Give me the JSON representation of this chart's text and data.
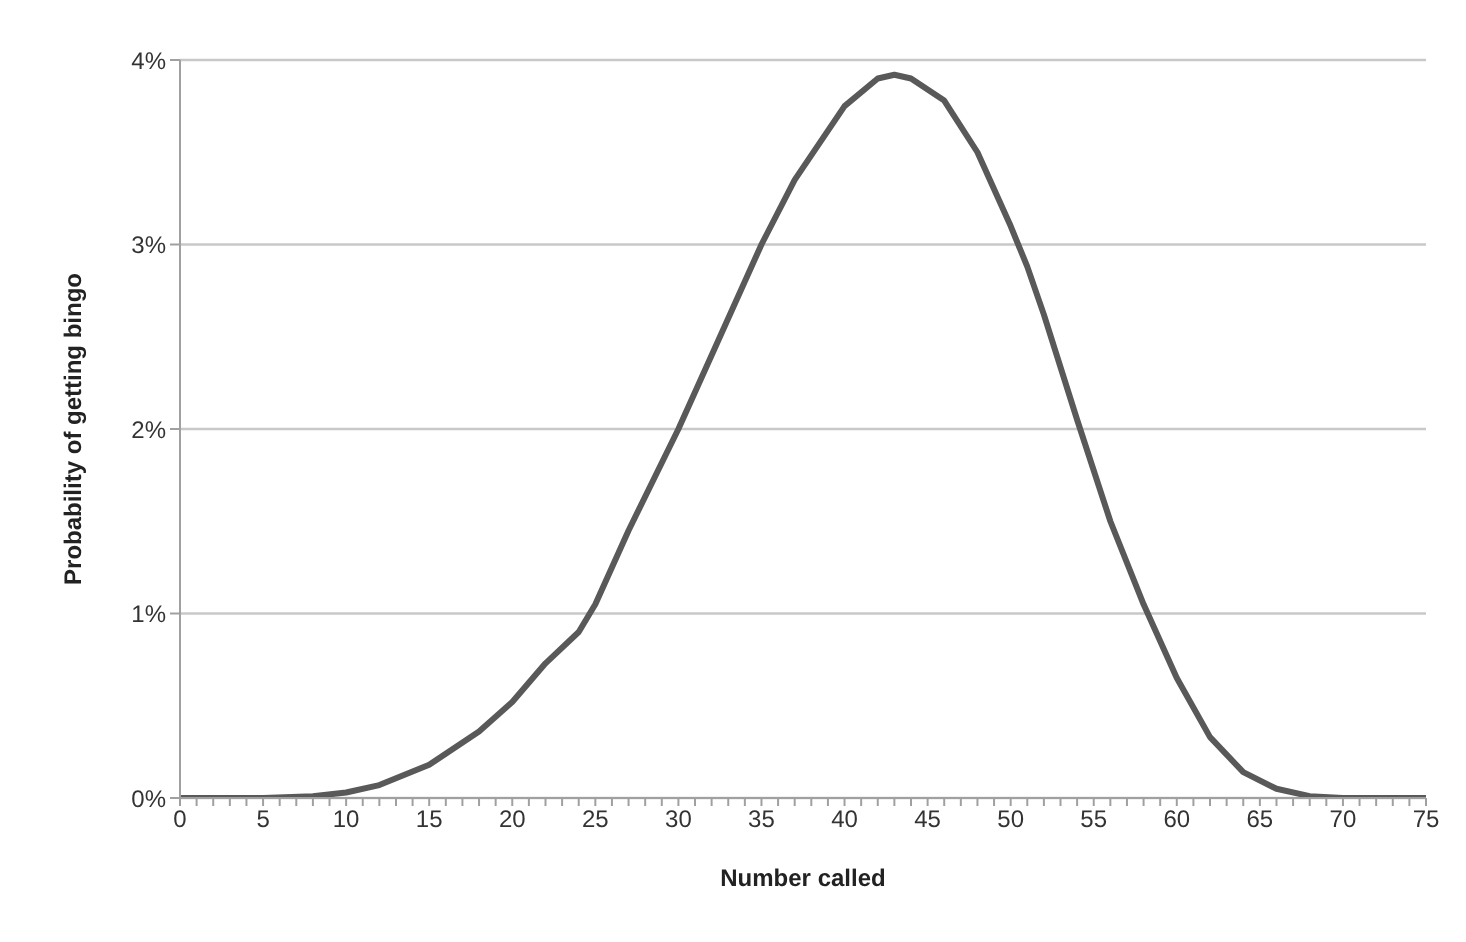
{
  "chart_data": {
    "type": "line",
    "xlabel": "Number called",
    "ylabel": "Probability of getting bingo",
    "x": [
      0,
      5,
      8,
      10,
      12,
      15,
      18,
      20,
      22,
      24,
      25,
      27,
      30,
      32,
      35,
      37,
      40,
      42,
      43,
      44,
      46,
      48,
      50,
      51,
      52,
      54,
      56,
      58,
      60,
      62,
      64,
      66,
      68,
      70,
      75
    ],
    "series": [
      {
        "color": "#595959",
        "values": [
          0,
          0,
          0.01,
          0.03,
          0.07,
          0.18,
          0.36,
          0.52,
          0.73,
          0.9,
          1.05,
          1.45,
          2.0,
          2.4,
          3.0,
          3.35,
          3.75,
          3.9,
          3.92,
          3.9,
          3.78,
          3.5,
          3.1,
          2.88,
          2.62,
          2.05,
          1.5,
          1.05,
          0.65,
          0.33,
          0.14,
          0.05,
          0.01,
          0,
          0
        ]
      }
    ],
    "xlim": [
      0,
      75
    ],
    "xticks": [
      0,
      {
        "value": 1,
        "label": null
      },
      {
        "value": 2,
        "label": null
      },
      {
        "value": 3,
        "label": null
      },
      {
        "value": 4,
        "label": null
      },
      5,
      {
        "value": 6,
        "label": null
      },
      {
        "value": 7,
        "label": null
      },
      {
        "value": 8,
        "label": null
      },
      {
        "value": 9,
        "label": null
      },
      10,
      {
        "value": 11,
        "label": null
      },
      {
        "value": 12,
        "label": null
      },
      {
        "value": 13,
        "label": null
      },
      {
        "value": 14,
        "label": null
      },
      15,
      {
        "value": 16,
        "label": null
      },
      {
        "value": 17,
        "label": null
      },
      {
        "value": 18,
        "label": null
      },
      {
        "value": 19,
        "label": null
      },
      20,
      {
        "value": 21,
        "label": null
      },
      {
        "value": 22,
        "label": null
      },
      {
        "value": 23,
        "label": null
      },
      {
        "value": 24,
        "label": null
      },
      25,
      {
        "value": 26,
        "label": null
      },
      {
        "value": 27,
        "label": null
      },
      {
        "value": 28,
        "label": null
      },
      {
        "value": 29,
        "label": null
      },
      30,
      {
        "value": 31,
        "label": null
      },
      {
        "value": 32,
        "label": null
      },
      {
        "value": 33,
        "label": null
      },
      {
        "value": 34,
        "label": null
      },
      35,
      {
        "value": 36,
        "label": null
      },
      {
        "value": 37,
        "label": null
      },
      {
        "value": 38,
        "label": null
      },
      {
        "value": 39,
        "label": null
      },
      40,
      {
        "value": 41,
        "label": null
      },
      {
        "value": 42,
        "label": null
      },
      {
        "value": 43,
        "label": null
      },
      {
        "value": 44,
        "label": null
      },
      45,
      {
        "value": 46,
        "label": null
      },
      {
        "value": 47,
        "label": null
      },
      {
        "value": 48,
        "label": null
      },
      {
        "value": 49,
        "label": null
      },
      50,
      {
        "value": 51,
        "label": null
      },
      {
        "value": 52,
        "label": null
      },
      {
        "value": 53,
        "label": null
      },
      {
        "value": 54,
        "label": null
      },
      55,
      {
        "value": 56,
        "label": null
      },
      {
        "value": 57,
        "label": null
      },
      {
        "value": 58,
        "label": null
      },
      {
        "value": 59,
        "label": null
      },
      60,
      {
        "value": 61,
        "label": null
      },
      {
        "value": 62,
        "label": null
      },
      {
        "value": 63,
        "label": null
      },
      {
        "value": 64,
        "label": null
      },
      65,
      {
        "value": 66,
        "label": null
      },
      {
        "value": 67,
        "label": null
      },
      {
        "value": 68,
        "label": null
      },
      {
        "value": 69,
        "label": null
      },
      70,
      {
        "value": 71,
        "label": null
      },
      {
        "value": 72,
        "label": null
      },
      {
        "value": 73,
        "label": null
      },
      {
        "value": 74,
        "label": null
      },
      75
    ],
    "ylim": [
      0,
      4
    ],
    "yticks": [
      {
        "value": 0,
        "label": "0%"
      },
      {
        "value": 1,
        "label": "1%"
      },
      {
        "value": 2,
        "label": "2%"
      },
      {
        "value": 3,
        "label": "3%"
      },
      {
        "value": 4,
        "label": "4%"
      }
    ],
    "grid": "y",
    "legend": false,
    "marker": "none",
    "line_style": "solid"
  }
}
